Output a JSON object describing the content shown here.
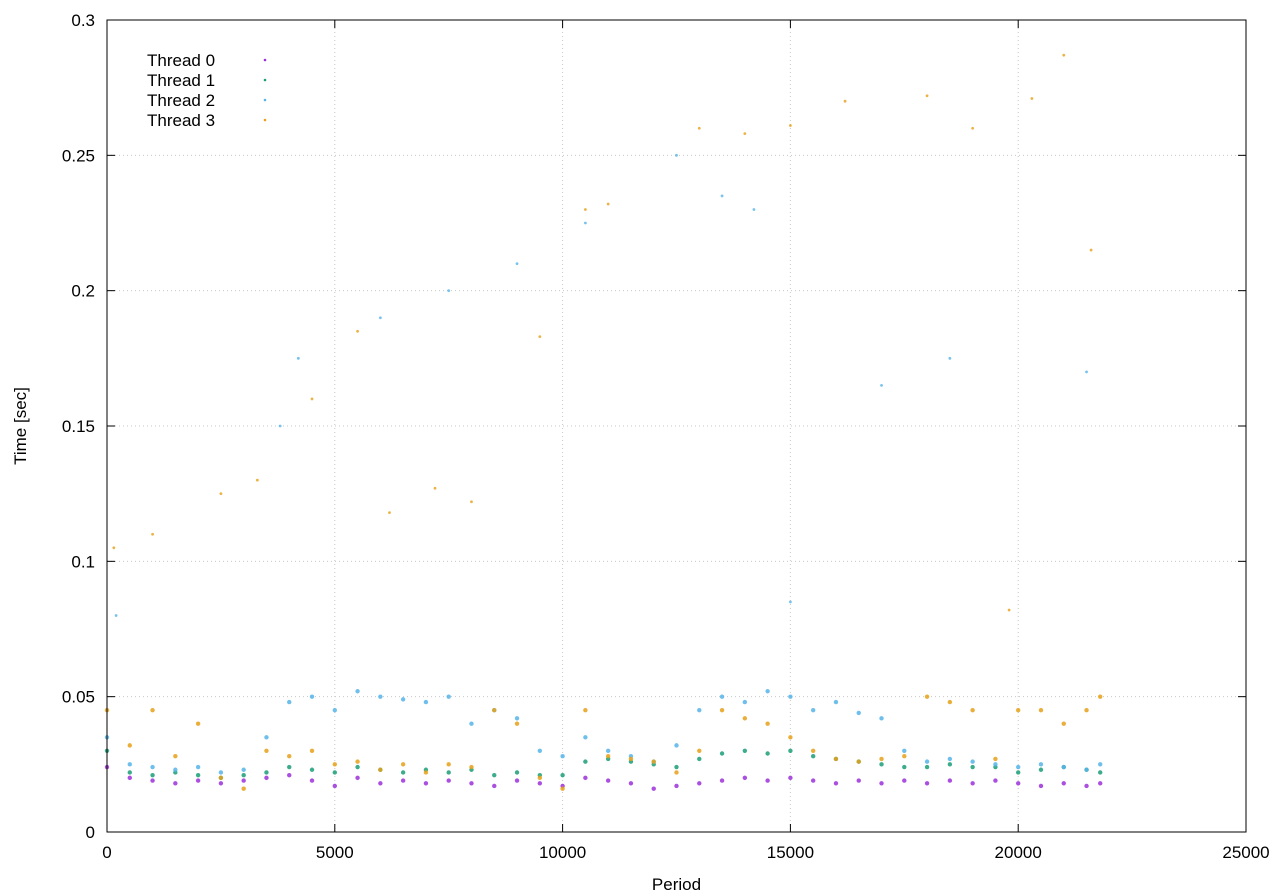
{
  "chart_data": {
    "type": "scatter",
    "title": "",
    "xlabel": "Period",
    "ylabel": "Time [sec]",
    "xlim": [
      0,
      25000
    ],
    "ylim": [
      0,
      0.3
    ],
    "xticks": [
      0,
      5000,
      10000,
      15000,
      20000,
      25000
    ],
    "xtick_labels": [
      "0",
      "5000",
      "10000",
      "15000",
      "20000",
      "25000"
    ],
    "yticks": [
      0,
      0.05,
      0.1,
      0.15,
      0.2,
      0.25,
      0.3
    ],
    "ytick_labels": [
      "0",
      "0.05",
      "0.1",
      "0.15",
      "0.2",
      "0.25",
      "0.3"
    ],
    "grid": true,
    "legend_position": "top-left",
    "series": [
      {
        "name": "Thread 0",
        "color": "#9b30d9",
        "x": [
          0,
          500,
          1000,
          1500,
          2000,
          2500,
          3000,
          3500,
          4000,
          4500,
          5000,
          5500,
          6000,
          6500,
          7000,
          7500,
          8000,
          8500,
          9000,
          9500,
          10000,
          10500,
          11000,
          11500,
          12000,
          12500,
          13000,
          13500,
          14000,
          14500,
          15000,
          15500,
          16000,
          16500,
          17000,
          17500,
          18000,
          18500,
          19000,
          19500,
          20000,
          20500,
          21000,
          21500,
          21800
        ],
        "y": [
          0.024,
          0.02,
          0.019,
          0.018,
          0.019,
          0.018,
          0.019,
          0.02,
          0.021,
          0.019,
          0.017,
          0.02,
          0.018,
          0.019,
          0.018,
          0.019,
          0.018,
          0.017,
          0.019,
          0.018,
          0.017,
          0.02,
          0.019,
          0.018,
          0.016,
          0.017,
          0.018,
          0.019,
          0.02,
          0.019,
          0.02,
          0.019,
          0.018,
          0.019,
          0.018,
          0.019,
          0.018,
          0.019,
          0.018,
          0.019,
          0.018,
          0.017,
          0.018,
          0.017,
          0.018
        ]
      },
      {
        "name": "Thread 1",
        "color": "#1a9e77",
        "x": [
          0,
          500,
          1000,
          1500,
          2000,
          2500,
          3000,
          3500,
          4000,
          4500,
          5000,
          5500,
          6000,
          6500,
          7000,
          7500,
          8000,
          8500,
          9000,
          9500,
          10000,
          10500,
          11000,
          11500,
          12000,
          12500,
          13000,
          13500,
          14000,
          14500,
          15000,
          15500,
          16000,
          16500,
          17000,
          17500,
          18000,
          18500,
          19000,
          19500,
          20000,
          20500,
          21000,
          21500,
          21800
        ],
        "y": [
          0.03,
          0.022,
          0.021,
          0.022,
          0.021,
          0.02,
          0.021,
          0.022,
          0.024,
          0.023,
          0.022,
          0.024,
          0.023,
          0.022,
          0.023,
          0.022,
          0.023,
          0.021,
          0.022,
          0.021,
          0.021,
          0.026,
          0.027,
          0.026,
          0.025,
          0.024,
          0.027,
          0.029,
          0.03,
          0.029,
          0.03,
          0.028,
          0.027,
          0.026,
          0.025,
          0.024,
          0.024,
          0.025,
          0.024,
          0.024,
          0.022,
          0.023,
          0.024,
          0.023,
          0.022
        ]
      },
      {
        "name": "Thread 2",
        "color": "#56b4e9",
        "x": [
          0,
          500,
          1000,
          1500,
          2000,
          2500,
          3000,
          3500,
          4000,
          4500,
          5000,
          5500,
          6000,
          6500,
          7000,
          7500,
          8000,
          8500,
          9000,
          9500,
          10000,
          10500,
          11000,
          11500,
          12000,
          12500,
          13000,
          13500,
          14000,
          14500,
          15000,
          15500,
          16000,
          16500,
          17000,
          17500,
          18000,
          18500,
          19000,
          19500,
          20000,
          20500,
          21000,
          21500,
          21800
        ],
        "y": [
          0.035,
          0.025,
          0.024,
          0.023,
          0.024,
          0.022,
          0.023,
          0.035,
          0.048,
          0.05,
          0.045,
          0.052,
          0.05,
          0.049,
          0.048,
          0.05,
          0.04,
          0.045,
          0.042,
          0.03,
          0.028,
          0.035,
          0.03,
          0.028,
          0.026,
          0.032,
          0.045,
          0.05,
          0.048,
          0.052,
          0.05,
          0.045,
          0.048,
          0.044,
          0.042,
          0.03,
          0.026,
          0.027,
          0.026,
          0.025,
          0.024,
          0.025,
          0.024,
          0.023,
          0.025
        ]
      },
      {
        "name": "Thread 3",
        "color": "#e6a018",
        "x": [
          0,
          500,
          1000,
          1500,
          2000,
          2500,
          3000,
          3500,
          4000,
          4500,
          5000,
          5500,
          6000,
          6500,
          7000,
          7500,
          8000,
          8500,
          9000,
          9500,
          10000,
          10500,
          11000,
          11500,
          12000,
          12500,
          13000,
          13500,
          14000,
          14500,
          15000,
          15500,
          16000,
          16500,
          17000,
          17500,
          18000,
          18500,
          19000,
          19500,
          20000,
          20500,
          21000,
          21500,
          21800
        ],
        "y": [
          0.045,
          0.032,
          0.045,
          0.028,
          0.04,
          0.02,
          0.016,
          0.03,
          0.028,
          0.03,
          0.025,
          0.026,
          0.023,
          0.025,
          0.022,
          0.025,
          0.024,
          0.045,
          0.04,
          0.02,
          0.016,
          0.045,
          0.028,
          0.027,
          0.026,
          0.022,
          0.03,
          0.045,
          0.042,
          0.04,
          0.035,
          0.03,
          0.027,
          0.026,
          0.027,
          0.028,
          0.05,
          0.048,
          0.045,
          0.027,
          0.045,
          0.045,
          0.04,
          0.045,
          0.05
        ]
      }
    ],
    "outliers": {
      "Thread 2": [
        [
          200,
          0.08
        ],
        [
          3800,
          0.15
        ],
        [
          4200,
          0.175
        ],
        [
          6000,
          0.19
        ],
        [
          7500,
          0.2
        ],
        [
          9000,
          0.21
        ],
        [
          10500,
          0.225
        ],
        [
          12500,
          0.25
        ],
        [
          13500,
          0.235
        ],
        [
          14200,
          0.23
        ],
        [
          15000,
          0.085
        ],
        [
          17000,
          0.165
        ],
        [
          18500,
          0.175
        ],
        [
          21500,
          0.17
        ]
      ],
      "Thread 3": [
        [
          150,
          0.105
        ],
        [
          1000,
          0.11
        ],
        [
          2500,
          0.125
        ],
        [
          3300,
          0.13
        ],
        [
          4500,
          0.16
        ],
        [
          5500,
          0.185
        ],
        [
          6200,
          0.118
        ],
        [
          7200,
          0.127
        ],
        [
          8000,
          0.122
        ],
        [
          9500,
          0.183
        ],
        [
          10500,
          0.23
        ],
        [
          11000,
          0.232
        ],
        [
          13000,
          0.26
        ],
        [
          14000,
          0.258
        ],
        [
          15000,
          0.261
        ],
        [
          16200,
          0.27
        ],
        [
          18000,
          0.272
        ],
        [
          19000,
          0.26
        ],
        [
          20300,
          0.271
        ],
        [
          21000,
          0.287
        ],
        [
          21600,
          0.215
        ],
        [
          19800,
          0.082
        ]
      ]
    }
  }
}
